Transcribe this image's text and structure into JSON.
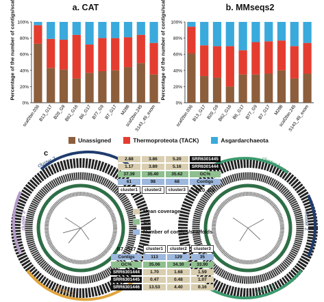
{
  "panel_a_title": "a. CAT",
  "panel_b_title": "b. MMseqs2",
  "ylabel": "Percentage of the number of contigs/scaffolds",
  "panel_c_label": "c",
  "colors": {
    "unassigned": "#8c5e3c",
    "thermo": "#e43d30",
    "asgard": "#3aaadc"
  },
  "legend": {
    "unassigned": "Unassigned",
    "thermo": "Thermoproteota (TACK)",
    "asgard": "Asgardarchaeota"
  },
  "chart_data": [
    {
      "type": "bar",
      "title": "a. CAT",
      "ylabel": "Percentage of the number of contigs/scaffolds",
      "ylim": [
        0,
        100
      ],
      "yticks": [
        "0%",
        "20%",
        "40%",
        "60%",
        "80%",
        "100%"
      ],
      "categories": [
        "scaf2bin.036",
        "B13_G17",
        "B20_G9",
        "B62_G16",
        "B6_G17",
        "B77_G9",
        "B7_G17",
        "M288",
        "scaf2bin.245",
        "S143_49_exom"
      ],
      "series": [
        {
          "name": "Unassigned",
          "values": [
            73,
            43,
            41,
            30,
            37,
            39,
            40,
            44,
            49,
            35
          ]
        },
        {
          "name": "Thermoproteota (TACK)",
          "values": [
            23,
            36,
            37,
            54,
            35,
            41,
            40,
            37,
            35,
            39
          ]
        },
        {
          "name": "Asgardarchaeota",
          "values": [
            4,
            21,
            22,
            16,
            28,
            20,
            20,
            19,
            16,
            26
          ]
        }
      ]
    },
    {
      "type": "bar",
      "title": "b. MMseqs2",
      "ylabel": "Percentage of the number of contigs/scaffolds",
      "ylim": [
        0,
        100
      ],
      "yticks": [
        "0%",
        "20%",
        "40%",
        "60%",
        "80%",
        "100%"
      ],
      "categories": [
        "scaf2bin.036",
        "B13_G17",
        "B20_G9",
        "B62_G16",
        "B6_G17",
        "B77_G9",
        "B7_G17",
        "M288",
        "scaf2bin.245",
        "S143_49_exom"
      ],
      "series": [
        {
          "name": "Unassigned",
          "values": [
            61,
            33,
            31,
            20,
            35,
            35,
            36,
            40,
            30,
            36
          ]
        },
        {
          "name": "Thermoproteota (TACK)",
          "values": [
            33,
            38,
            39,
            50,
            30,
            40,
            40,
            37,
            40,
            38
          ]
        },
        {
          "name": "Asgardarchaeota",
          "values": [
            6,
            29,
            30,
            30,
            35,
            25,
            24,
            23,
            30,
            26
          ]
        }
      ]
    }
  ],
  "table_top": {
    "bin": "B20_G9",
    "rows": [
      {
        "values": [
          "2.88",
          "3.86",
          "5.20"
        ],
        "label": "SRR6301445"
      },
      {
        "values": [
          "1.17",
          "3.89",
          "5.16"
        ],
        "label": "SRR6301444"
      },
      {
        "values": [
          "37.39",
          "35.40",
          "35.62"
        ],
        "label": "GC%"
      },
      {
        "values": [
          "61",
          "98",
          "68"
        ],
        "label": "Contigs"
      }
    ],
    "clusters": [
      "cluster1",
      "cluster2",
      "cluster3"
    ]
  },
  "table_bottom": {
    "bin": "B7_G17",
    "clusters": [
      "cluster1",
      "cluster2",
      "cluster3"
    ],
    "rows": [
      {
        "label": "Contigs",
        "values": [
          "113",
          "129",
          "35"
        ]
      },
      {
        "label": "GC%",
        "values": [
          "35.06",
          "34.30",
          "33.90"
        ]
      },
      {
        "label": "SRR6301444",
        "values": [
          "1.70",
          "1.68",
          "1.59"
        ]
      },
      {
        "label": "SRR6301445",
        "values": [
          "0.47",
          "0.48",
          "1.07"
        ]
      },
      {
        "label": "SRR6301446",
        "values": [
          "13.53",
          "4.40",
          "0.16"
        ]
      }
    ]
  },
  "mid_legend": {
    "coverage": "Mean coverage",
    "gc": "GC",
    "contigs": "Number of contigs/scaffolds"
  },
  "clusters": {
    "left_top": "cluster 2",
    "left_mid": "cluster 3",
    "left_bottom": "cluster 1",
    "right_top": "cluster 1",
    "right_mid": "cluster 2",
    "right_bottom": "cluster 3"
  }
}
